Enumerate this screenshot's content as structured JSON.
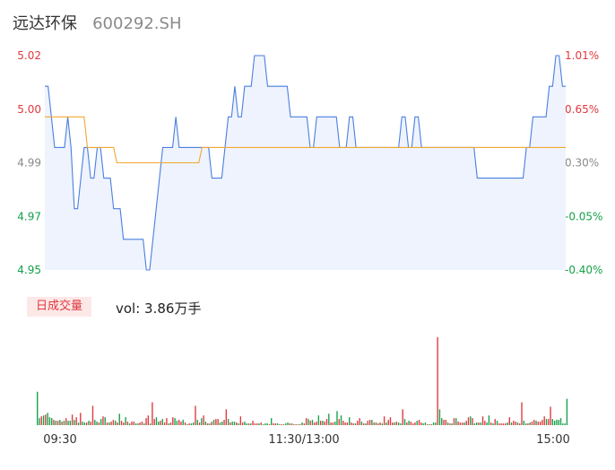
{
  "header": {
    "name": "远达环保",
    "code": "600292.SH"
  },
  "volume_panel": {
    "badge": "日成交量",
    "vol_text": "vol: 3.86万手"
  },
  "colors": {
    "price_line": "#4a7fe0",
    "avg_line": "#f0a830",
    "up": "#e0383e",
    "down": "#15a04a",
    "neutral": "#8a8a8a",
    "area_fill": "#eef3fd"
  },
  "chart_data": [
    {
      "type": "line",
      "y_left_ticks": [
        "5.02",
        "5.00",
        "4.99",
        "4.97",
        "4.95"
      ],
      "y_left_values": [
        5.02,
        5.0,
        4.99,
        4.97,
        4.95
      ],
      "y_right_ticks": [
        "1.01%",
        "0.65%",
        "0.30%",
        "-0.05%",
        "-0.40%"
      ],
      "ylim": [
        4.95,
        5.02
      ],
      "prev_close": 4.97,
      "x_ticks": [
        "09:30",
        "11:30/13:00",
        "15:00"
      ],
      "series": [
        {
          "values": [
            5.01,
            5.01,
            5.0,
            4.99,
            4.99,
            4.99,
            4.99,
            5.0,
            4.99,
            4.97,
            4.97,
            4.98,
            4.99,
            4.99,
            4.98,
            4.98,
            4.99,
            4.99,
            4.98,
            4.98,
            4.98,
            4.97,
            4.97,
            4.97,
            4.96,
            4.96,
            4.96,
            4.96,
            4.96,
            4.96,
            4.96,
            4.95,
            4.95,
            4.96,
            4.97,
            4.98,
            4.99,
            4.99,
            4.99,
            4.99,
            5.0,
            4.99,
            4.99,
            4.99,
            4.99,
            4.99,
            4.99,
            4.99,
            4.99,
            4.99,
            4.99,
            4.98,
            4.98,
            4.98,
            4.98,
            4.99,
            5.0,
            5.0,
            5.01,
            5.0,
            5.0,
            5.01,
            5.01,
            5.01,
            5.02,
            5.02,
            5.02,
            5.02,
            5.01,
            5.01,
            5.01,
            5.01,
            5.01,
            5.01,
            5.01,
            5.0,
            5.0,
            5.0,
            5.0,
            5.0,
            5.0,
            4.99,
            4.99,
            5.0,
            5.0,
            5.0,
            5.0,
            5.0,
            5.0,
            5.0,
            4.99,
            4.99,
            4.99,
            5.0,
            5.0,
            4.99,
            4.99,
            4.99,
            4.99,
            4.99,
            4.99,
            4.99,
            4.99,
            4.99,
            4.99,
            4.99,
            4.99,
            4.99,
            4.99,
            5.0,
            5.0,
            4.99,
            4.99,
            5.0,
            5.0,
            4.99,
            4.99,
            4.99,
            4.99,
            4.99,
            4.99,
            4.99,
            4.99,
            4.99,
            4.99,
            4.99,
            4.99,
            4.99,
            4.99,
            4.99,
            4.99,
            4.99,
            4.98,
            4.98,
            4.98,
            4.98,
            4.98,
            4.98,
            4.98,
            4.98,
            4.98,
            4.98,
            4.98,
            4.98,
            4.98,
            4.98,
            4.98,
            4.99,
            4.99,
            5.0,
            5.0,
            5.0,
            5.0,
            5.0,
            5.01,
            5.01,
            5.02,
            5.02,
            5.01,
            5.01
          ]
        },
        {
          "values": [
            5.0,
            5.0,
            5.0,
            5.0,
            5.0,
            5.0,
            5.0,
            5.0,
            5.0,
            5.0,
            5.0,
            5.0,
            5.0,
            4.99,
            4.99,
            4.99,
            4.99,
            4.99,
            4.99,
            4.99,
            4.99,
            4.99,
            4.985,
            4.985,
            4.985,
            4.985,
            4.985,
            4.985,
            4.985,
            4.985,
            4.985,
            4.985,
            4.985,
            4.985,
            4.985,
            4.985,
            4.985,
            4.985,
            4.985,
            4.985,
            4.985,
            4.985,
            4.985,
            4.985,
            4.985,
            4.985,
            4.985,
            4.985,
            4.99,
            4.99,
            4.99,
            4.99,
            4.99,
            4.99,
            4.99,
            4.99,
            4.99,
            4.99,
            4.99,
            4.99,
            4.99,
            4.99,
            4.99,
            4.99,
            4.99,
            4.99,
            4.99,
            4.99,
            4.99,
            4.99,
            4.99,
            4.99,
            4.99,
            4.99,
            4.99,
            4.99,
            4.99,
            4.99,
            4.99,
            4.99,
            4.99,
            4.99,
            4.99,
            4.99,
            4.99,
            4.99,
            4.99,
            4.99,
            4.99,
            4.99,
            4.99,
            4.99,
            4.99,
            4.99,
            4.99,
            4.99,
            4.99,
            4.99,
            4.99,
            4.99,
            4.99,
            4.99,
            4.99,
            4.99,
            4.99,
            4.99,
            4.99,
            4.99,
            4.99,
            4.99,
            4.99,
            4.99,
            4.99,
            4.99,
            4.99,
            4.99,
            4.99,
            4.99,
            4.99,
            4.99,
            4.99,
            4.99,
            4.99,
            4.99,
            4.99,
            4.99,
            4.99,
            4.99,
            4.99,
            4.99,
            4.99,
            4.99,
            4.99,
            4.99,
            4.99,
            4.99,
            4.99,
            4.99,
            4.99,
            4.99,
            4.99,
            4.99,
            4.99,
            4.99,
            4.99,
            4.99,
            4.99,
            4.99,
            4.99,
            4.99,
            4.99,
            4.99,
            4.99,
            4.99,
            4.99,
            4.99,
            4.99,
            4.99,
            4.99,
            4.99
          ]
        }
      ]
    },
    {
      "type": "bar",
      "values": [
        38,
        8,
        10,
        11,
        12,
        14,
        9,
        8,
        6,
        5,
        5,
        6,
        4,
        5,
        8,
        5,
        5,
        12,
        6,
        9,
        3,
        14,
        4,
        3,
        3,
        5,
        4,
        22,
        6,
        4,
        3,
        7,
        10,
        9,
        3,
        3,
        4,
        6,
        5,
        3,
        13,
        5,
        3,
        9,
        4,
        2,
        4,
        4,
        2,
        2,
        3,
        4,
        2,
        8,
        11,
        2,
        26,
        7,
        9,
        4,
        5,
        7,
        3,
        8,
        2,
        3,
        9,
        8,
        5,
        6,
        4,
        6,
        3,
        1,
        2,
        2,
        3,
        22,
        6,
        3,
        8,
        11,
        4,
        2,
        2,
        4,
        6,
        7,
        7,
        3,
        4,
        6,
        18,
        7,
        3,
        4,
        4,
        3,
        2,
        10,
        3,
        4,
        2,
        2,
        2,
        5,
        2,
        2,
        2,
        3,
        1,
        2,
        2,
        1,
        8,
        2,
        2,
        2,
        1,
        1,
        1,
        2,
        3,
        2,
        2,
        1,
        1,
        1,
        1,
        3,
        2,
        8,
        7,
        5,
        6,
        3,
        4,
        11,
        5,
        5,
        4,
        7,
        13,
        3,
        3,
        4,
        16,
        7,
        11,
        5,
        3,
        3,
        9,
        3,
        2,
        2,
        5,
        8,
        4,
        2,
        2,
        5,
        6,
        6,
        3,
        3,
        2,
        3,
        2,
        10,
        3,
        6,
        9,
        3,
        3,
        4,
        3,
        2,
        18,
        7,
        3,
        5,
        4,
        2,
        3,
        5,
        6,
        3,
        2,
        3,
        1,
        1,
        1,
        3,
        3,
        100,
        18,
        8,
        6,
        6,
        3,
        2,
        2,
        8,
        8,
        4,
        3,
        3,
        3,
        5,
        9,
        10,
        8,
        2,
        3,
        3,
        3,
        10,
        5,
        3,
        11,
        3,
        2,
        7,
        5,
        2,
        2,
        2,
        2,
        3,
        9,
        3,
        5,
        4,
        3,
        2,
        26,
        5,
        2,
        2,
        3,
        4,
        6,
        5,
        4,
        4,
        6,
        10,
        7,
        7,
        21,
        7,
        5,
        6,
        6,
        8,
        2,
        2,
        30
      ],
      "direction": [
        "d",
        "d",
        "u",
        "d",
        "u",
        "d",
        "d",
        "d",
        "u",
        "d",
        "u",
        "d",
        "u",
        "d",
        "u",
        "d",
        "d",
        "u",
        "d",
        "u",
        "d",
        "u",
        "d",
        "d",
        "u",
        "d",
        "u",
        "u",
        "d",
        "d",
        "u",
        "d",
        "u",
        "d",
        "u",
        "d",
        "u",
        "u",
        "d",
        "u",
        "d",
        "u",
        "u",
        "d",
        "u",
        "d",
        "u",
        "u",
        "d",
        "d",
        "u",
        "u",
        "d",
        "u",
        "u",
        "d",
        "u",
        "u",
        "d",
        "d",
        "u",
        "d",
        "u",
        "u",
        "d",
        "u",
        "u",
        "d",
        "d",
        "u",
        "u",
        "d",
        "u",
        "d",
        "u",
        "d",
        "d",
        "u",
        "d",
        "u",
        "d",
        "u",
        "d",
        "u",
        "d",
        "u",
        "d",
        "u",
        "u",
        "d",
        "d",
        "u",
        "u",
        "d",
        "u",
        "d",
        "d",
        "u",
        "d",
        "u",
        "u",
        "d",
        "d",
        "u",
        "d",
        "u",
        "u",
        "u",
        "d",
        "u",
        "d",
        "d",
        "d",
        "u",
        "d",
        "u",
        "u",
        "d",
        "d",
        "u",
        "u",
        "d",
        "d",
        "u",
        "d",
        "u",
        "u",
        "d",
        "u",
        "d",
        "u",
        "u",
        "d",
        "u",
        "d",
        "u",
        "u",
        "d",
        "u",
        "d",
        "u",
        "u",
        "d",
        "u",
        "u",
        "d",
        "d",
        "u",
        "d",
        "u",
        "u",
        "u",
        "d",
        "u",
        "u",
        "d",
        "u",
        "u",
        "d",
        "u",
        "d",
        "u",
        "u",
        "d",
        "u",
        "d",
        "u",
        "u",
        "d",
        "u",
        "d",
        "u",
        "u",
        "u",
        "d",
        "u",
        "d",
        "d",
        "u",
        "d",
        "u",
        "d",
        "u",
        "u",
        "u",
        "d",
        "u",
        "u",
        "d",
        "d",
        "u",
        "d",
        "u",
        "d",
        "d",
        "u",
        "d",
        "d",
        "u",
        "u",
        "d",
        "u",
        "d",
        "u",
        "d",
        "u",
        "u",
        "u",
        "d",
        "u",
        "u",
        "d",
        "u",
        "d",
        "d",
        "u",
        "d",
        "u",
        "u",
        "d",
        "d",
        "u",
        "d",
        "u",
        "d",
        "u",
        "u",
        "u",
        "u",
        "d",
        "u",
        "d",
        "u",
        "u",
        "d",
        "u",
        "u",
        "d",
        "d",
        "u",
        "d",
        "u",
        "u",
        "d",
        "u",
        "u",
        "u",
        "u",
        "d",
        "u",
        "u"
      ]
    }
  ]
}
